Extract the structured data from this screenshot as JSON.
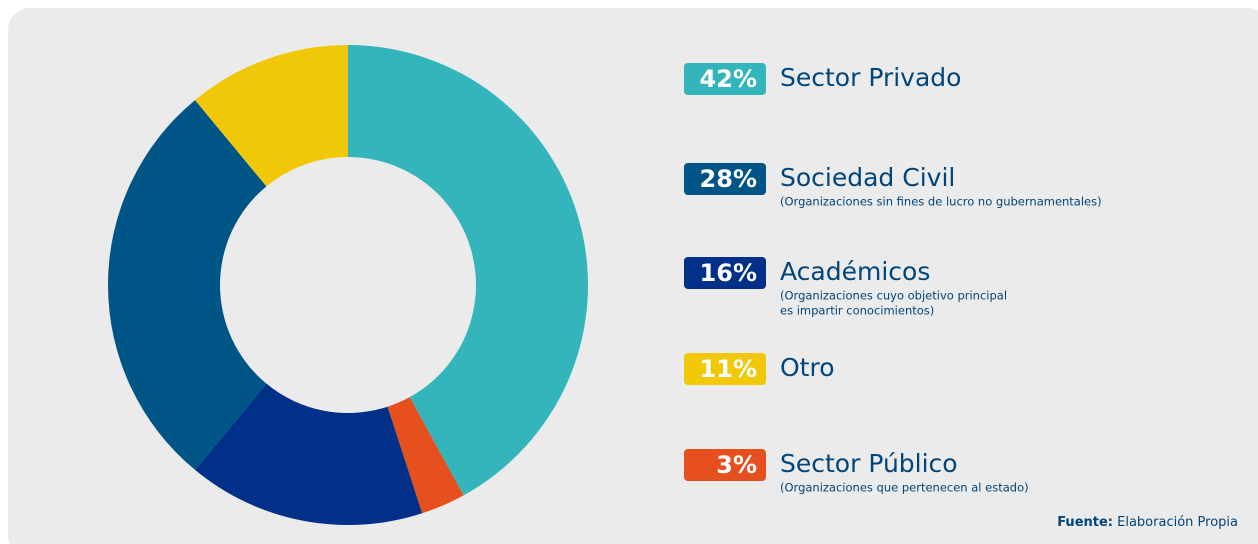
{
  "chart_data": {
    "type": "donut",
    "categories": [
      "Sector Privado",
      "Sector Público",
      "Académicos",
      "Sociedad Civil",
      "Otro"
    ],
    "values": [
      42,
      3,
      16,
      28,
      11
    ],
    "value_labels": [
      "42%",
      "3%",
      "16%",
      "28%",
      "11%"
    ],
    "colors": [
      "#33b5bb",
      "#e5501e",
      "#003087",
      "#005587",
      "#f0c808"
    ],
    "notes": [
      null,
      [
        "(Organizaciones que pertenecen al estado)"
      ],
      [
        "(Organizaciones cuyo objetivo principal",
        "es impartir conocimientos)"
      ],
      [
        "(Organizaciones sin fines de lucro no gubernamentales)"
      ],
      null
    ],
    "source": {
      "label": "Fuente:",
      "text": "Elaboración Propia"
    }
  }
}
